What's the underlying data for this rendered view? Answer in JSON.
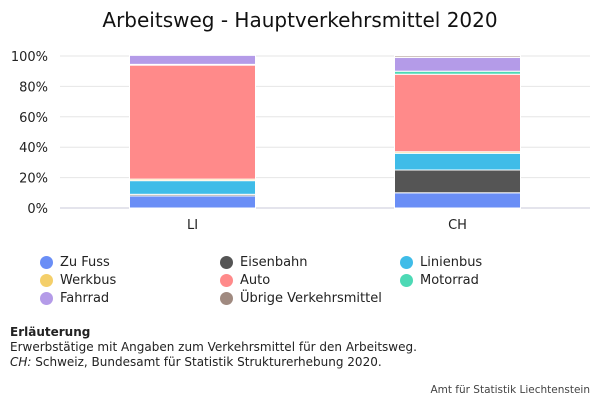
{
  "chart_data": {
    "type": "bar",
    "stacked": true,
    "title": "Arbeitsweg - Hauptverkehrsmittel 2020",
    "categories": [
      "LI",
      "CH"
    ],
    "yticks": [
      "0%",
      "20%",
      "40%",
      "60%",
      "80%",
      "100%"
    ],
    "ylim": [
      0,
      100
    ],
    "legend_position": "bottom",
    "series": [
      {
        "name": "Zu Fuss",
        "color": "#6a8ef6",
        "values": [
          8,
          10
        ]
      },
      {
        "name": "Eisenbahn",
        "color": "#555555",
        "values": [
          1,
          15
        ]
      },
      {
        "name": "Linienbus",
        "color": "#3fbce8",
        "values": [
          9,
          11
        ]
      },
      {
        "name": "Werkbus",
        "color": "#f4cf6a",
        "values": [
          1,
          1
        ]
      },
      {
        "name": "Auto",
        "color": "#ff8a8a",
        "values": [
          75,
          51
        ]
      },
      {
        "name": "Motorrad",
        "color": "#4dd9b5",
        "values": [
          0.5,
          2
        ]
      },
      {
        "name": "Fahrrad",
        "color": "#b49be8",
        "values": [
          6,
          9
        ]
      },
      {
        "name": "Übrige Verkehrsmittel",
        "color": "#a08a80",
        "values": [
          0.5,
          1
        ]
      }
    ]
  },
  "notes": {
    "heading": "Erläuterung",
    "line1": "Erwerbstätige mit Angaben zum Verkehrsmittel für den Arbeitsweg.",
    "source_label": "CH:",
    "source_text": " Schweiz, Bundesamt für Statistik Strukturerhebung 2020."
  },
  "credit": "Amt für Statistik Liechtenstein"
}
